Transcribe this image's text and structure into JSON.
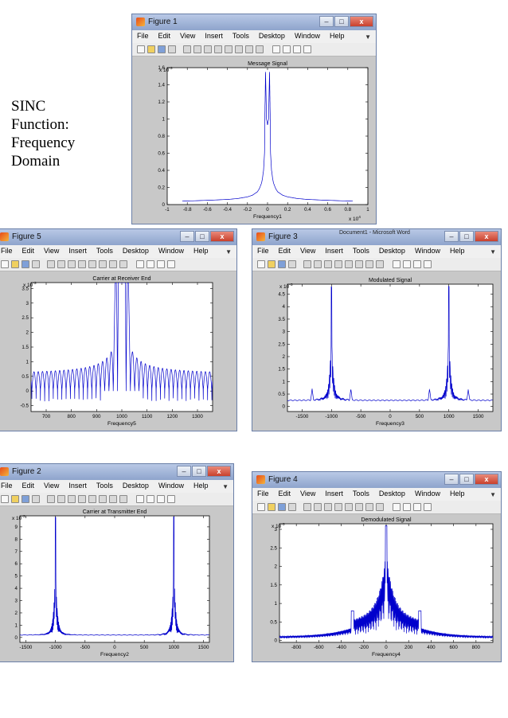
{
  "side_label": {
    "line1": "SINC",
    "line2": "Function:",
    "line3": "Frequency",
    "line4": "Domain"
  },
  "menu_items": [
    "File",
    "Edit",
    "View",
    "Insert",
    "Tools",
    "Desktop",
    "Window",
    "Help"
  ],
  "window_controls": {
    "minimize": "–",
    "maximize": "□",
    "close": "x"
  },
  "colors": {
    "plot_line": "#0000cc",
    "figure_bg": "#c8c8c8",
    "axes_bg": "#ffffff"
  },
  "word_title": "Document1 - Microsoft Word",
  "figures": [
    {
      "id": "figure1",
      "window_title": "Figure 1",
      "chart_data": {
        "type": "line",
        "title": "Message Signal",
        "xlabel": "Frequency1",
        "ylabel": "",
        "x_exponent": "x 10",
        "x_exponent_power": "4",
        "y_exponent": "x 10",
        "y_exponent_power": "-3",
        "xlim": [
          -1,
          1
        ],
        "ylim": [
          0,
          1.6
        ],
        "xticks": [
          -1,
          -0.8,
          -0.6,
          -0.4,
          -0.2,
          0,
          0.2,
          0.4,
          0.6,
          0.8,
          1
        ],
        "xticklabels": [
          "-1",
          "-0.8",
          "-0.6",
          "-0.4",
          "-0.2",
          "0",
          "0.2",
          "0.4",
          "0.6",
          "0.8",
          "1"
        ],
        "yticks": [
          0,
          0.2,
          0.4,
          0.6,
          0.8,
          1,
          1.2,
          1.4,
          1.6
        ],
        "yticklabels": [
          "0",
          "0.2",
          "0.4",
          "0.6",
          "0.8",
          "1",
          "1.2",
          "1.4",
          "1.6"
        ],
        "series": [
          {
            "x": [
              -0.85,
              -0.6,
              -0.4,
              -0.3,
              -0.2,
              -0.15,
              -0.1,
              -0.08,
              -0.06,
              -0.05,
              -0.04,
              -0.03,
              -0.025,
              -0.02,
              -0.01,
              0,
              0.01,
              0.02,
              0.025,
              0.03,
              0.04,
              0.05,
              0.06,
              0.08,
              0.1,
              0.15,
              0.2,
              0.3,
              0.4,
              0.6,
              0.85
            ],
            "y": [
              0.04,
              0.05,
              0.06,
              0.07,
              0.09,
              0.11,
              0.15,
              0.19,
              0.25,
              0.31,
              0.4,
              0.6,
              1.15,
              1.55,
              1.0,
              0.93,
              1.0,
              1.55,
              1.15,
              0.6,
              0.4,
              0.31,
              0.25,
              0.19,
              0.15,
              0.11,
              0.09,
              0.07,
              0.06,
              0.05,
              0.04
            ]
          }
        ]
      }
    },
    {
      "id": "figure5",
      "window_title": "Figure 5",
      "chart_data": {
        "type": "line",
        "title": "Carrier at Receiver End",
        "xlabel": "Frequency5",
        "ylabel": "",
        "y_exponent": "x 10",
        "y_exponent_power": "-3",
        "xlim": [
          640,
          1360
        ],
        "ylim": [
          -0.7,
          3.7
        ],
        "xticks": [
          700,
          800,
          900,
          1000,
          1100,
          1200,
          1300
        ],
        "xticklabels": [
          "700",
          "800",
          "900",
          "1000",
          "1100",
          "1200",
          "1300"
        ],
        "yticks": [
          -0.5,
          0,
          0.5,
          1,
          1.5,
          2,
          2.5,
          3,
          3.5
        ],
        "yticklabels": [
          "-0.5",
          "0",
          "0.5",
          "1",
          "1.5",
          "2",
          "2.5",
          "3",
          "3.5"
        ],
        "center": 1000,
        "lobe_spacing": 17,
        "peak_height": 3.7
      }
    },
    {
      "id": "figure3",
      "window_title": "Figure 3",
      "chart_data": {
        "type": "line",
        "title": "Modulated Signal",
        "xlabel": "Frequency3",
        "ylabel": "",
        "y_exponent": "x 10",
        "y_exponent_power": "-3",
        "xlim": [
          -1750,
          1750
        ],
        "ylim": [
          -0.2,
          4.9
        ],
        "xticks": [
          -1500,
          -1000,
          -500,
          0,
          500,
          1000,
          1500
        ],
        "xticklabels": [
          "-1500",
          "-1000",
          "-500",
          "0",
          "500",
          "1000",
          "1500"
        ],
        "yticks": [
          0,
          0.5,
          1,
          1.5,
          2,
          2.5,
          3,
          3.5,
          4,
          4.5
        ],
        "yticklabels": [
          "0",
          "0.5",
          "1",
          "1.5",
          "2",
          "2.5",
          "3",
          "3.5",
          "4",
          "4.5"
        ],
        "peaks": [
          -1000,
          1000
        ],
        "peak_height": 4.8,
        "baseline": 0.25
      }
    },
    {
      "id": "figure2",
      "window_title": "Figure 2",
      "chart_data": {
        "type": "line",
        "title": "Carrier at Transmitter End",
        "xlabel": "Frequency2",
        "ylabel": "",
        "y_exponent": "x 10",
        "y_exponent_power": "-3",
        "xlim": [
          -1600,
          1600
        ],
        "ylim": [
          -0.4,
          9.9
        ],
        "xticks": [
          -1500,
          -1000,
          -500,
          0,
          500,
          1000,
          1500
        ],
        "xticklabels": [
          "-1500",
          "-1000",
          "-500",
          "0",
          "500",
          "1000",
          "1500"
        ],
        "yticks": [
          0,
          1,
          2,
          3,
          4,
          5,
          6,
          7,
          8,
          9
        ],
        "yticklabels": [
          "0",
          "1",
          "2",
          "3",
          "4",
          "5",
          "6",
          "7",
          "8",
          "9"
        ],
        "peaks": [
          -1000,
          1000
        ],
        "peak_height": 9.8,
        "baseline": 0.2
      }
    },
    {
      "id": "figure4",
      "window_title": "Figure 4",
      "chart_data": {
        "type": "line",
        "title": "Demodulated Signal",
        "xlabel": "Frequency4",
        "ylabel": "",
        "y_exponent": "x 10",
        "y_exponent_power": "-3",
        "xlim": [
          -950,
          950
        ],
        "ylim": [
          -0.05,
          3.15
        ],
        "xticks": [
          -800,
          -600,
          -400,
          -200,
          0,
          200,
          400,
          600,
          800
        ],
        "xticklabels": [
          "-800",
          "-600",
          "-400",
          "-200",
          "0",
          "200",
          "400",
          "600",
          "800"
        ],
        "yticks": [
          0,
          0.5,
          1,
          1.5,
          2,
          2.5,
          3
        ],
        "yticklabels": [
          "0",
          "0.5",
          "1",
          "1.5",
          "2",
          "2.5",
          "3"
        ],
        "peak_height": 3.1,
        "baseline": 0.1
      }
    }
  ]
}
